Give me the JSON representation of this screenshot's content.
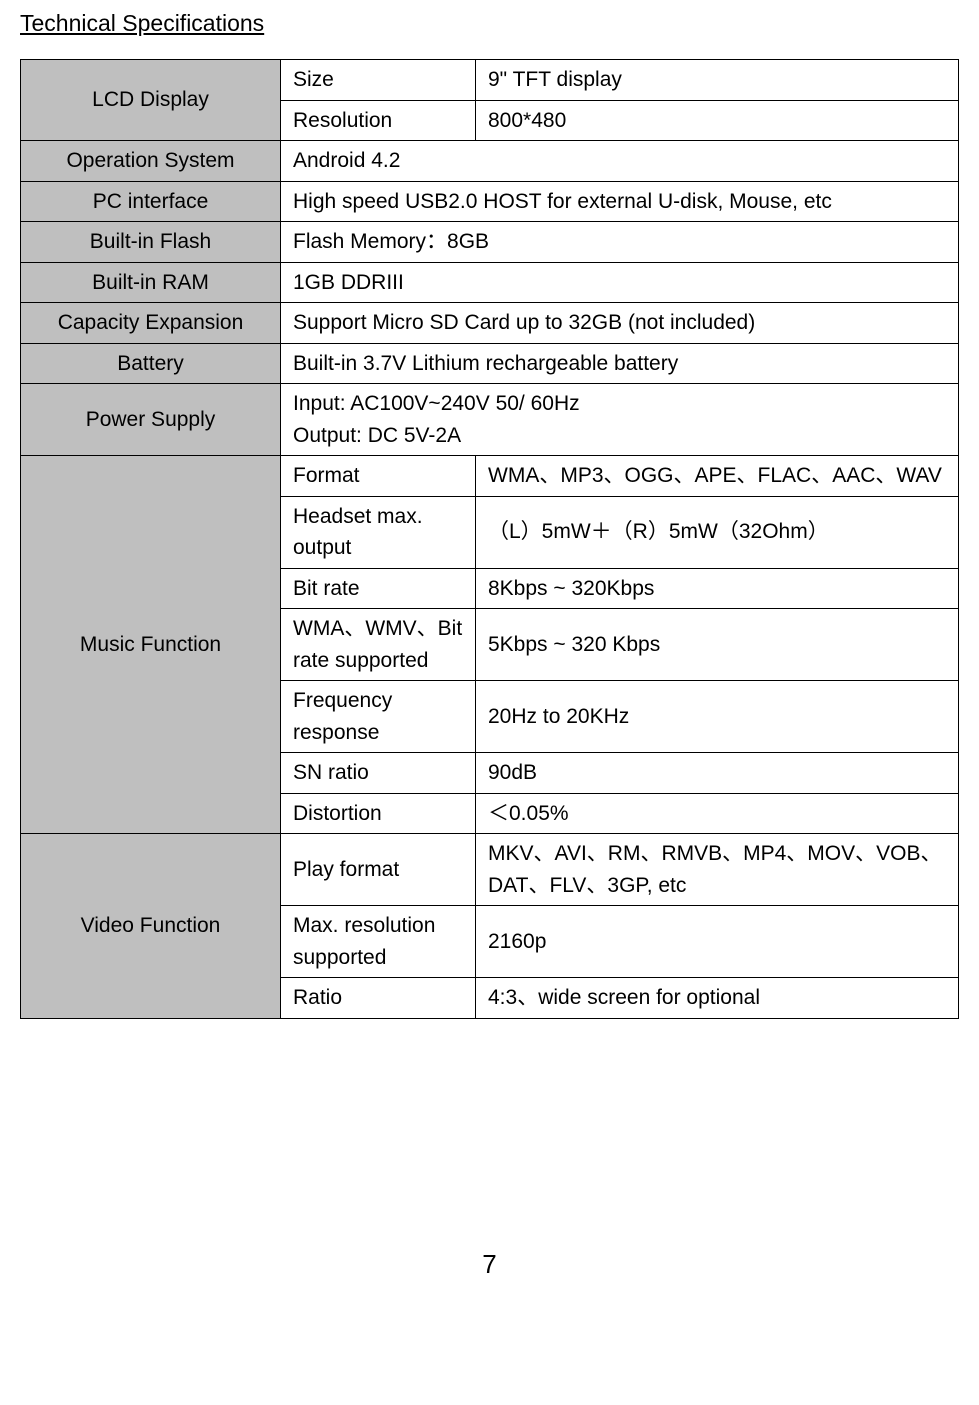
{
  "title": "Technical Specifications",
  "pageNumber": "7",
  "rows": {
    "lcdDisplay": {
      "label": "LCD Display",
      "size": {
        "label": "Size",
        "value": "9\" TFT display"
      },
      "resolution": {
        "label": "Resolution",
        "value": "800*480"
      }
    },
    "os": {
      "label": "Operation System",
      "value": "Android 4.2"
    },
    "pcInterface": {
      "label": "PC interface",
      "value": "High speed USB2.0  HOST for external U-disk, Mouse, etc"
    },
    "flash": {
      "label": "Built-in Flash",
      "value": "Flash Memory：8GB"
    },
    "ram": {
      "label": "Built-in RAM",
      "value": "1GB DDRIII"
    },
    "capacity": {
      "label": "Capacity Expansion",
      "value": "Support Micro SD Card up to 32GB (not included)"
    },
    "battery": {
      "label": "Battery",
      "value": "Built-in 3.7V Lithium rechargeable battery"
    },
    "power": {
      "label": "Power Supply",
      "value1": "Input: AC100V~240V 50/ 60Hz",
      "value2": "Output: DC 5V-2A"
    },
    "music": {
      "label": "Music Function",
      "format": {
        "label": "Format",
        "value": "WMA、MP3、OGG、APE、FLAC、AAC、WAV"
      },
      "headset": {
        "label": "Headset max. output",
        "value": "（L）5mW＋（R）5mW（32Ohm）"
      },
      "bitrate": {
        "label": "Bit rate",
        "value": "8Kbps ~ 320Kbps"
      },
      "wmv": {
        "label": "WMA、WMV、Bit rate supported",
        "value": "5Kbps ~ 320 Kbps"
      },
      "freq": {
        "label": "Frequency response",
        "value": "20Hz to 20KHz"
      },
      "sn": {
        "label": "SN ratio",
        "value": "90dB"
      },
      "distortion": {
        "label": "Distortion",
        "value": "＜0.05%"
      }
    },
    "video": {
      "label": "Video Function",
      "playFormat": {
        "label": "Play format",
        "value": "MKV、AVI、RM、RMVB、MP4、MOV、VOB、DAT、FLV、3GP, etc"
      },
      "maxRes": {
        "label": "Max. resolution supported",
        "value": "2160p"
      },
      "ratio": {
        "label": "Ratio",
        "value": "4:3、wide screen for optional"
      }
    }
  }
}
